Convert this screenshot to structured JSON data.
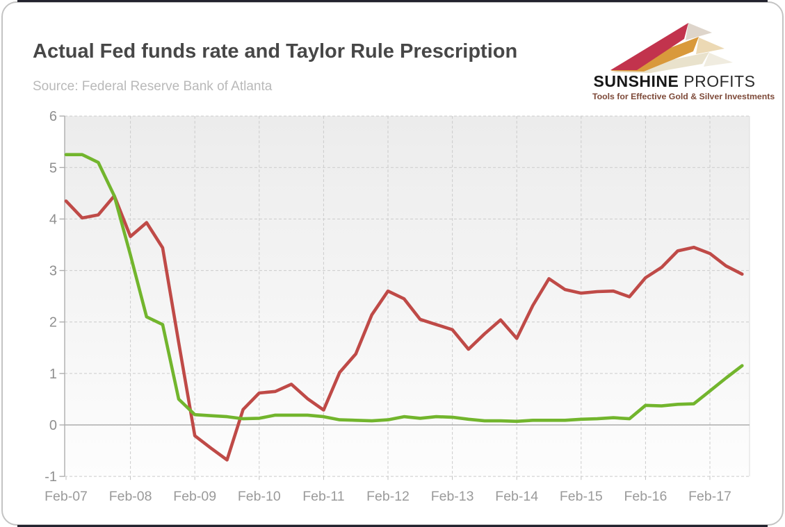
{
  "frame": {
    "border_color": "#c3c3c3",
    "edge_bar_color": "#23232e",
    "background": "#ffffff"
  },
  "header": {
    "title": "Actual Fed funds rate and Taylor Rule Prescription",
    "source": "Source: Federal Reserve Bank of Atlanta"
  },
  "logo": {
    "name_bold": "SUNSHINE",
    "name_light": " PROFITS",
    "tagline": "Tools for Effective Gold & Silver Investments",
    "colors": {
      "ray_red": "#c2334d",
      "ray_gold": "#d9993b",
      "ray_cream": "#e9e2cc",
      "text": "#171717",
      "tagline": "#7d4938"
    }
  },
  "chart_data": {
    "type": "line",
    "title": "Actual Fed funds rate and Taylor Rule Prescription",
    "xlabel": "",
    "ylabel": "",
    "ylim": [
      -1,
      6
    ],
    "y_ticks": [
      6,
      5,
      4,
      3,
      2,
      1,
      0,
      -1
    ],
    "x_tick_labels": [
      "Feb-07",
      "Feb-08",
      "Feb-09",
      "Feb-10",
      "Feb-11",
      "Feb-12",
      "Feb-13",
      "Feb-14",
      "Feb-15",
      "Feb-16",
      "Feb-17"
    ],
    "x": [
      "Feb-07",
      "May-07",
      "Aug-07",
      "Nov-07",
      "Feb-08",
      "May-08",
      "Aug-08",
      "Nov-08",
      "Feb-09",
      "May-09",
      "Aug-09",
      "Nov-09",
      "Feb-10",
      "May-10",
      "Aug-10",
      "Nov-10",
      "Feb-11",
      "May-11",
      "Aug-11",
      "Nov-11",
      "Feb-12",
      "May-12",
      "Aug-12",
      "Nov-12",
      "Feb-13",
      "May-13",
      "Aug-13",
      "Nov-13",
      "Feb-14",
      "May-14",
      "Aug-14",
      "Nov-14",
      "Feb-15",
      "May-15",
      "Aug-15",
      "Nov-15",
      "Feb-16",
      "May-16",
      "Aug-16",
      "Nov-16",
      "Feb-17",
      "May-17",
      "Aug-17"
    ],
    "grid": {
      "horizontal": "dashed",
      "vertical": "dashed at each Feb",
      "zero_line": "solid"
    },
    "legend_position": "none",
    "plot_background": {
      "top": "#ececec",
      "bottom": "#fdfdfd"
    },
    "series": [
      {
        "name": "Taylor Rule Prescription",
        "color": "#bf4a47",
        "values": [
          4.35,
          4.02,
          4.08,
          4.45,
          3.66,
          3.93,
          3.44,
          1.6,
          -0.21,
          -0.45,
          -0.68,
          0.3,
          0.62,
          0.65,
          0.79,
          0.51,
          0.29,
          1.02,
          1.38,
          2.14,
          2.6,
          2.45,
          2.05,
          1.95,
          1.85,
          1.47,
          1.77,
          2.04,
          1.68,
          2.32,
          2.84,
          2.63,
          2.56,
          2.59,
          2.6,
          2.49,
          2.86,
          3.06,
          3.38,
          3.45,
          3.33,
          3.09,
          2.93
        ]
      },
      {
        "name": "Actual Fed funds rate",
        "color": "#72b52d",
        "values": [
          5.25,
          5.25,
          5.1,
          4.45,
          3.3,
          2.1,
          1.95,
          0.5,
          0.2,
          0.18,
          0.16,
          0.12,
          0.13,
          0.19,
          0.19,
          0.19,
          0.16,
          0.1,
          0.09,
          0.08,
          0.1,
          0.16,
          0.13,
          0.16,
          0.15,
          0.11,
          0.08,
          0.08,
          0.07,
          0.09,
          0.09,
          0.09,
          0.11,
          0.12,
          0.14,
          0.12,
          0.38,
          0.37,
          0.4,
          0.41,
          0.66,
          0.91,
          1.15
        ]
      }
    ]
  }
}
